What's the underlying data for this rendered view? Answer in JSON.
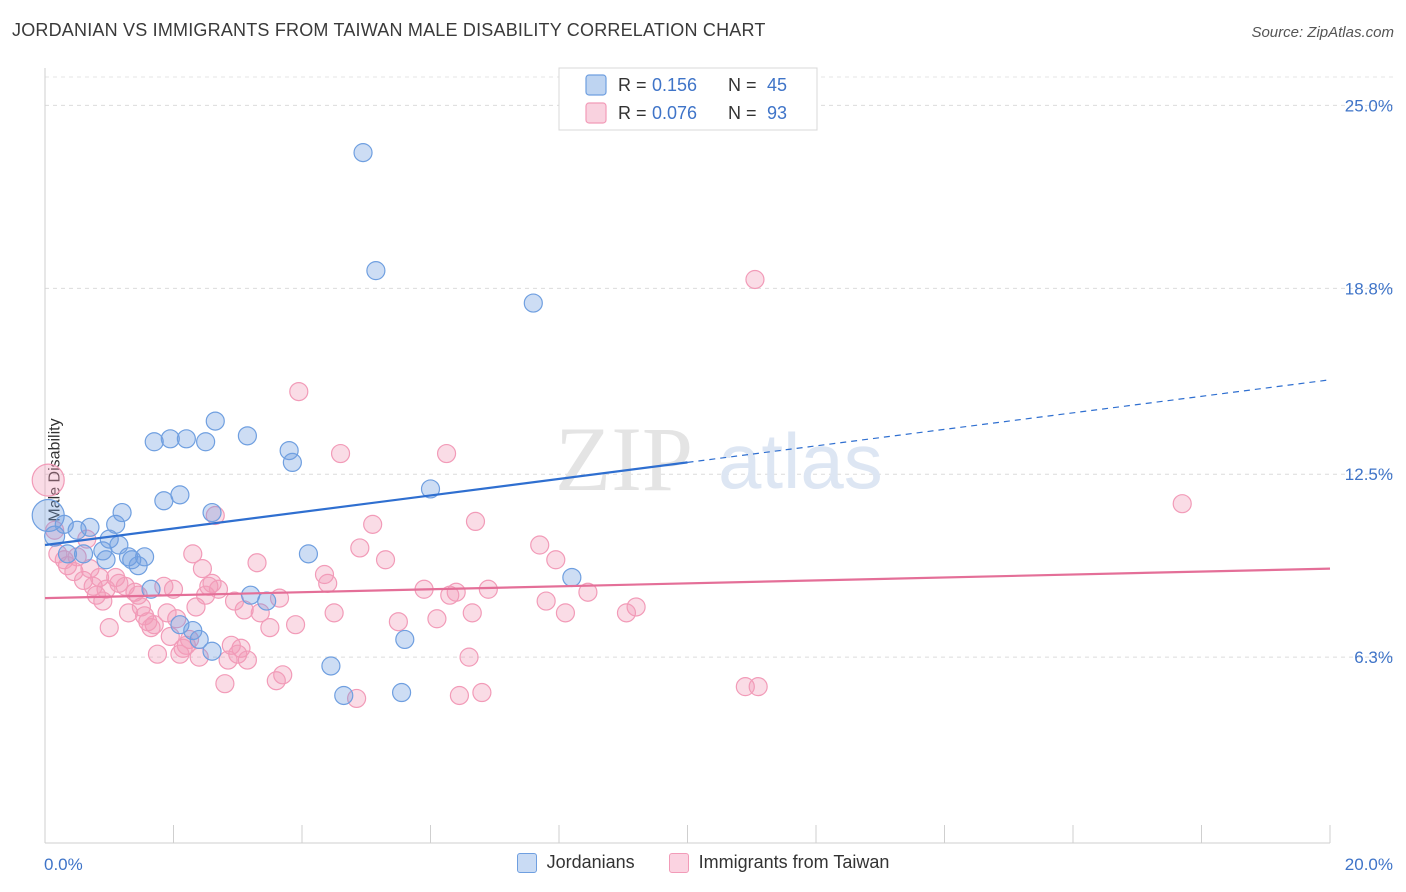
{
  "header": {
    "title": "JORDANIAN VS IMMIGRANTS FROM TAIWAN MALE DISABILITY CORRELATION CHART",
    "source": "Source: ZipAtlas.com"
  },
  "watermark": {
    "zip": "ZIP",
    "atlas": "atlas"
  },
  "chart_data": {
    "type": "scatter",
    "title": "JORDANIAN VS IMMIGRANTS FROM TAIWAN MALE DISABILITY CORRELATION CHART",
    "xlabel": "",
    "ylabel": "Male Disability",
    "xlim": [
      0,
      20
    ],
    "ylim": [
      0,
      26.2
    ],
    "x_tick_labels": {
      "left": "0.0%",
      "right": "20.0%"
    },
    "y_ticks": [
      {
        "value": 6.3,
        "label": "6.3%"
      },
      {
        "value": 12.5,
        "label": "12.5%"
      },
      {
        "value": 18.8,
        "label": "18.8%"
      },
      {
        "value": 25.0,
        "label": "25.0%"
      }
    ],
    "grid": true,
    "legend_position": "top-center",
    "series": [
      {
        "name": "Jordanians",
        "color": "#6f9fe0",
        "line_color": "#2f6fd0",
        "R": "0.156",
        "N": "45",
        "trend": {
          "x0": 0,
          "y0": 10.1,
          "x1": 10,
          "y1": 12.9,
          "x_end": 20,
          "y_end": 15.7
        },
        "points": [
          [
            0.05,
            11.1,
            16
          ],
          [
            0.15,
            10.4,
            10
          ],
          [
            0.3,
            10.8,
            9
          ],
          [
            0.5,
            10.6,
            9
          ],
          [
            0.7,
            10.7,
            9
          ],
          [
            0.35,
            9.8,
            9
          ],
          [
            0.6,
            9.8,
            9
          ],
          [
            0.9,
            9.9,
            9
          ],
          [
            1.0,
            10.3,
            9
          ],
          [
            0.95,
            9.6,
            9
          ],
          [
            1.1,
            10.8,
            9
          ],
          [
            1.2,
            11.2,
            9
          ],
          [
            1.3,
            9.7,
            9
          ],
          [
            1.35,
            9.6,
            9
          ],
          [
            1.45,
            9.4,
            9
          ],
          [
            1.55,
            9.7,
            9
          ],
          [
            1.65,
            8.6,
            9
          ],
          [
            1.7,
            13.6,
            9
          ],
          [
            1.95,
            13.7,
            9
          ],
          [
            2.2,
            13.7,
            9
          ],
          [
            2.5,
            13.6,
            9
          ],
          [
            1.85,
            11.6,
            9
          ],
          [
            2.1,
            11.8,
            9
          ],
          [
            2.65,
            14.3,
            9
          ],
          [
            2.6,
            11.2,
            9
          ],
          [
            3.15,
            13.8,
            9
          ],
          [
            3.8,
            13.3,
            9
          ],
          [
            3.85,
            12.9,
            9
          ],
          [
            4.1,
            9.8,
            9
          ],
          [
            3.2,
            8.4,
            9
          ],
          [
            3.45,
            8.2,
            9
          ],
          [
            2.1,
            7.4,
            9
          ],
          [
            2.3,
            7.2,
            9
          ],
          [
            2.4,
            6.9,
            9
          ],
          [
            2.6,
            6.5,
            9
          ],
          [
            4.95,
            23.4,
            9
          ],
          [
            5.15,
            19.4,
            9
          ],
          [
            7.6,
            18.3,
            9
          ],
          [
            6.0,
            12.0,
            9
          ],
          [
            8.2,
            9.0,
            9
          ],
          [
            5.6,
            6.9,
            9
          ],
          [
            4.45,
            6.0,
            9
          ],
          [
            4.65,
            5.0,
            9
          ],
          [
            5.55,
            5.1,
            9
          ],
          [
            1.15,
            10.1,
            9
          ]
        ]
      },
      {
        "name": "Immigrants from Taiwan",
        "color": "#f29bb8",
        "line_color": "#e46f98",
        "R": "0.076",
        "N": "93",
        "trend": {
          "x0": 0,
          "y0": 8.3,
          "x1": 20,
          "y1": 9.3
        },
        "points": [
          [
            0.05,
            12.3,
            16
          ],
          [
            0.15,
            10.6,
            9
          ],
          [
            0.2,
            9.8,
            9
          ],
          [
            0.3,
            9.6,
            9
          ],
          [
            0.35,
            9.4,
            9
          ],
          [
            0.45,
            9.2,
            9
          ],
          [
            0.5,
            9.7,
            9
          ],
          [
            0.6,
            8.9,
            9
          ],
          [
            0.7,
            9.3,
            9
          ],
          [
            0.75,
            8.7,
            9
          ],
          [
            0.8,
            8.4,
            9
          ],
          [
            0.85,
            9.0,
            9
          ],
          [
            0.9,
            8.2,
            9
          ],
          [
            0.95,
            8.6,
            9
          ],
          [
            1.0,
            7.3,
            9
          ],
          [
            1.1,
            9.0,
            9
          ],
          [
            1.15,
            8.8,
            9
          ],
          [
            1.25,
            8.7,
            9
          ],
          [
            1.3,
            7.8,
            9
          ],
          [
            1.4,
            8.5,
            9
          ],
          [
            1.45,
            8.4,
            9
          ],
          [
            1.5,
            8.0,
            9
          ],
          [
            1.55,
            7.7,
            9
          ],
          [
            1.6,
            7.5,
            9
          ],
          [
            1.7,
            7.4,
            9
          ],
          [
            1.75,
            6.4,
            9
          ],
          [
            1.85,
            8.7,
            9
          ],
          [
            1.9,
            7.8,
            9
          ],
          [
            1.95,
            7.0,
            9
          ],
          [
            2.0,
            8.6,
            9
          ],
          [
            2.05,
            7.6,
            9
          ],
          [
            2.1,
            6.4,
            9
          ],
          [
            2.15,
            6.6,
            9
          ],
          [
            2.2,
            6.7,
            9
          ],
          [
            2.3,
            9.8,
            9
          ],
          [
            2.35,
            8.0,
            9
          ],
          [
            2.4,
            6.3,
            9
          ],
          [
            2.45,
            9.3,
            9
          ],
          [
            2.5,
            8.4,
            9
          ],
          [
            2.55,
            8.7,
            9
          ],
          [
            2.6,
            8.8,
            9
          ],
          [
            2.65,
            11.1,
            9
          ],
          [
            2.7,
            8.6,
            9
          ],
          [
            2.8,
            5.4,
            9
          ],
          [
            2.85,
            6.2,
            9
          ],
          [
            2.9,
            6.7,
            9
          ],
          [
            2.95,
            8.2,
            9
          ],
          [
            3.05,
            6.6,
            9
          ],
          [
            3.1,
            7.9,
            9
          ],
          [
            3.15,
            6.2,
            9
          ],
          [
            3.3,
            9.5,
            9
          ],
          [
            3.35,
            7.8,
            9
          ],
          [
            3.5,
            7.3,
            9
          ],
          [
            3.6,
            5.5,
            9
          ],
          [
            3.7,
            5.7,
            9
          ],
          [
            3.65,
            8.3,
            9
          ],
          [
            3.9,
            7.4,
            9
          ],
          [
            3.95,
            15.3,
            9
          ],
          [
            4.35,
            9.1,
            9
          ],
          [
            4.4,
            8.8,
            9
          ],
          [
            4.5,
            7.8,
            9
          ],
          [
            4.6,
            13.2,
            9
          ],
          [
            4.85,
            4.9,
            9
          ],
          [
            4.9,
            10.0,
            9
          ],
          [
            5.1,
            10.8,
            9
          ],
          [
            5.3,
            9.6,
            9
          ],
          [
            5.5,
            7.5,
            9
          ],
          [
            5.9,
            8.6,
            9
          ],
          [
            6.1,
            7.6,
            9
          ],
          [
            6.25,
            13.2,
            9
          ],
          [
            6.3,
            8.4,
            9
          ],
          [
            6.4,
            8.5,
            9
          ],
          [
            6.45,
            5.0,
            9
          ],
          [
            6.6,
            6.3,
            9
          ],
          [
            6.65,
            7.8,
            9
          ],
          [
            6.7,
            10.9,
            9
          ],
          [
            6.8,
            5.1,
            9
          ],
          [
            6.9,
            8.6,
            9
          ],
          [
            7.7,
            10.1,
            9
          ],
          [
            7.8,
            8.2,
            9
          ],
          [
            7.95,
            9.6,
            9
          ],
          [
            8.1,
            7.8,
            9
          ],
          [
            8.45,
            8.5,
            9
          ],
          [
            9.05,
            7.8,
            9
          ],
          [
            9.2,
            8.0,
            9
          ],
          [
            11.05,
            19.1,
            9
          ],
          [
            10.9,
            5.3,
            9
          ],
          [
            11.1,
            5.3,
            9
          ],
          [
            17.7,
            11.5,
            9
          ],
          [
            3.0,
            6.4,
            9
          ],
          [
            2.25,
            6.9,
            9
          ],
          [
            1.65,
            7.3,
            9
          ],
          [
            0.65,
            10.3,
            9
          ]
        ]
      }
    ]
  }
}
